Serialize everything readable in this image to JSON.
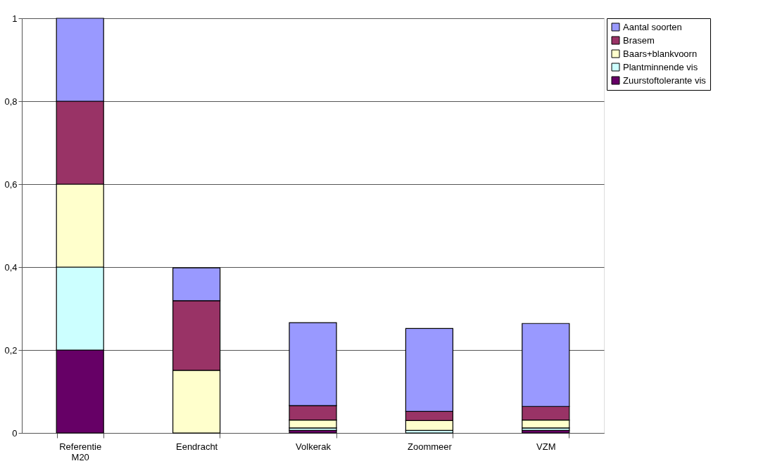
{
  "chart_data": {
    "type": "bar",
    "stacked": true,
    "categories": [
      "Referentie M20",
      "Eendracht",
      "Volkerak",
      "Zoommeer",
      "VZM"
    ],
    "series": [
      {
        "name": "Zuurstoftolerante vis",
        "color": "#660066",
        "values": [
          0.2,
          0,
          0.006,
          0,
          0.006
        ]
      },
      {
        "name": "Plantminnende vis",
        "color": "#ccffff",
        "values": [
          0.2,
          0,
          0.006,
          0.006,
          0.006
        ]
      },
      {
        "name": "Baars+blankvoorn",
        "color": "#ffffcc",
        "values": [
          0.2,
          0.151,
          0.019,
          0.024,
          0.019
        ]
      },
      {
        "name": "Brasem",
        "color": "#993366",
        "values": [
          0.2,
          0.168,
          0.035,
          0.022,
          0.033
        ]
      },
      {
        "name": "Aantal soorten",
        "color": "#9999ff",
        "values": [
          0.2,
          0.079,
          0.2,
          0.2,
          0.2
        ]
      }
    ],
    "ylim": [
      0,
      1
    ],
    "yticks": [
      0,
      {
        "value": 0.2,
        "label": "0,2"
      },
      {
        "value": 0.4,
        "label": "0,4"
      },
      {
        "value": 0.6,
        "label": "0,6"
      },
      {
        "value": 0.8,
        "label": "0,8"
      },
      1
    ],
    "grid": "y",
    "legend": "right"
  }
}
